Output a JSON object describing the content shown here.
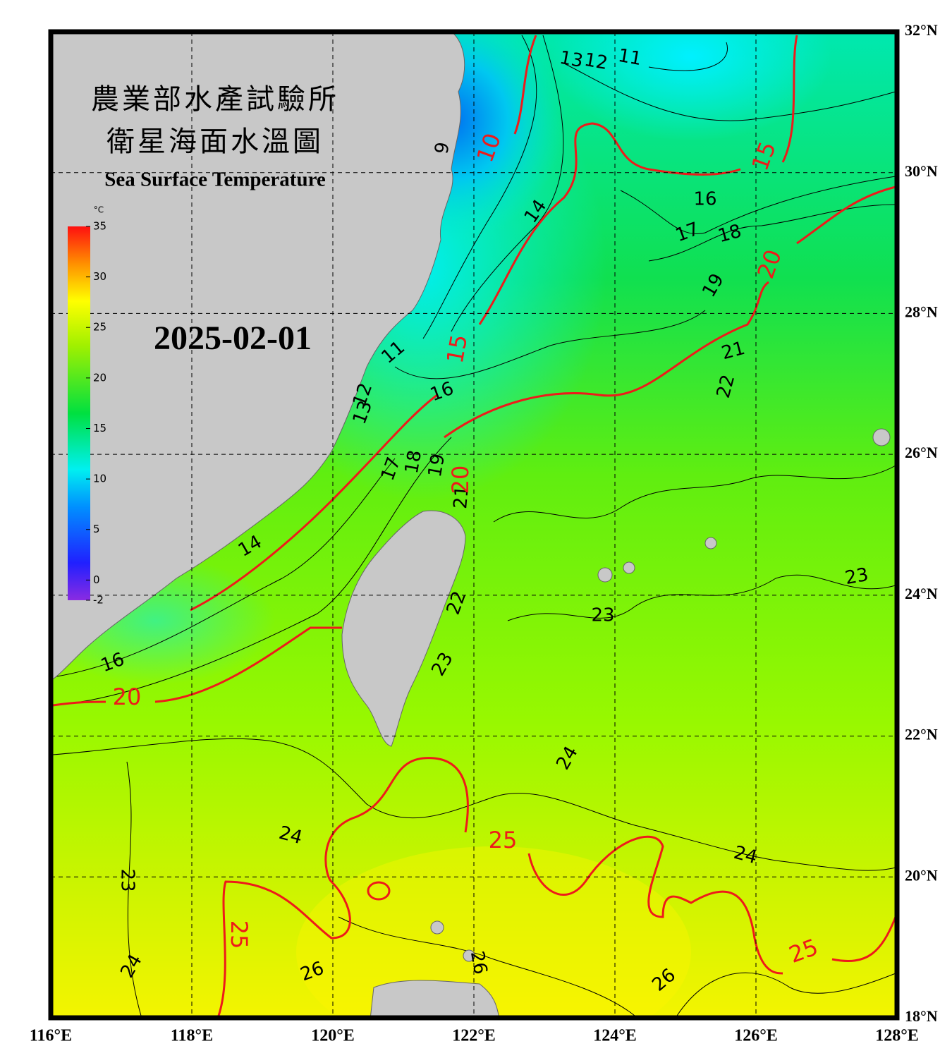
{
  "header": {
    "title_zh_1": "農業部水產試驗所",
    "title_zh_2": "衛星海面水溫圖",
    "title_en": "Sea Surface Temperature",
    "date": "2025-02-01"
  },
  "colorbar": {
    "unit": "°C",
    "range": [
      -2,
      35
    ],
    "ticks": [
      35,
      30,
      25,
      20,
      15,
      10,
      5,
      0,
      -2
    ]
  },
  "longitudes": [
    "116°E",
    "118°E",
    "120°E",
    "122°E",
    "124°E",
    "126°E",
    "128°E"
  ],
  "latitudes": [
    "32°N",
    "30°N",
    "28°N",
    "26°N",
    "24°N",
    "22°N",
    "20°N",
    "18°N"
  ],
  "contour_labels": [
    "13",
    "12",
    "11",
    "9",
    "14",
    "16",
    "17",
    "18",
    "19",
    "21",
    "22",
    "11",
    "16",
    "13",
    "12",
    "17",
    "18",
    "19",
    "21",
    "14",
    "22",
    "23",
    "23",
    "23",
    "16",
    "24",
    "24",
    "24",
    "23",
    "24",
    "26",
    "26",
    "26"
  ],
  "contour_labels_major": [
    "10",
    "15",
    "20",
    "15",
    "20",
    "20",
    "25",
    "25",
    "25"
  ]
}
